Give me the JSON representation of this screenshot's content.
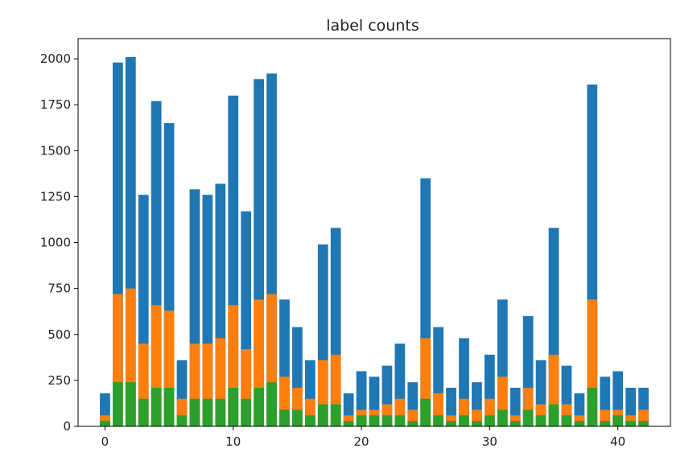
{
  "chart_data": {
    "type": "bar",
    "title": "label counts",
    "xlabel": "",
    "ylabel": "",
    "xlim": [
      -2.1,
      44.1
    ],
    "ylim": [
      0,
      2110
    ],
    "xticks": [
      0,
      10,
      20,
      30,
      40
    ],
    "yticks": [
      0,
      250,
      500,
      750,
      1000,
      1250,
      1500,
      1750,
      2000
    ],
    "grid": false,
    "categories": [
      0,
      1,
      2,
      3,
      4,
      5,
      6,
      7,
      8,
      9,
      10,
      11,
      12,
      13,
      14,
      15,
      16,
      17,
      18,
      19,
      20,
      21,
      22,
      23,
      24,
      25,
      26,
      27,
      28,
      29,
      30,
      31,
      32,
      33,
      34,
      35,
      36,
      37,
      38,
      39,
      40,
      41,
      42
    ],
    "series": [
      {
        "color": "#1f77b4",
        "values": [
          180,
          1980,
          2010,
          1260,
          1770,
          1650,
          360,
          1290,
          1260,
          1320,
          1800,
          1170,
          1890,
          1920,
          690,
          540,
          360,
          990,
          1080,
          180,
          300,
          270,
          330,
          450,
          240,
          1350,
          540,
          210,
          480,
          240,
          390,
          690,
          210,
          600,
          360,
          1080,
          330,
          180,
          1860,
          270,
          300,
          210,
          210
        ]
      },
      {
        "color": "#ff7f0e",
        "values": [
          60,
          720,
          750,
          450,
          660,
          630,
          150,
          450,
          450,
          480,
          660,
          420,
          690,
          720,
          270,
          210,
          150,
          360,
          390,
          60,
          90,
          90,
          120,
          150,
          90,
          480,
          180,
          60,
          150,
          90,
          150,
          270,
          60,
          210,
          120,
          390,
          120,
          60,
          690,
          90,
          90,
          60,
          90
        ]
      },
      {
        "color": "#2ca02c",
        "values": [
          30,
          240,
          240,
          150,
          210,
          210,
          60,
          150,
          150,
          150,
          210,
          150,
          210,
          240,
          90,
          90,
          60,
          120,
          120,
          30,
          60,
          60,
          60,
          60,
          30,
          150,
          60,
          30,
          60,
          30,
          60,
          90,
          30,
          90,
          60,
          120,
          60,
          30,
          210,
          30,
          60,
          30,
          30
        ]
      }
    ]
  }
}
